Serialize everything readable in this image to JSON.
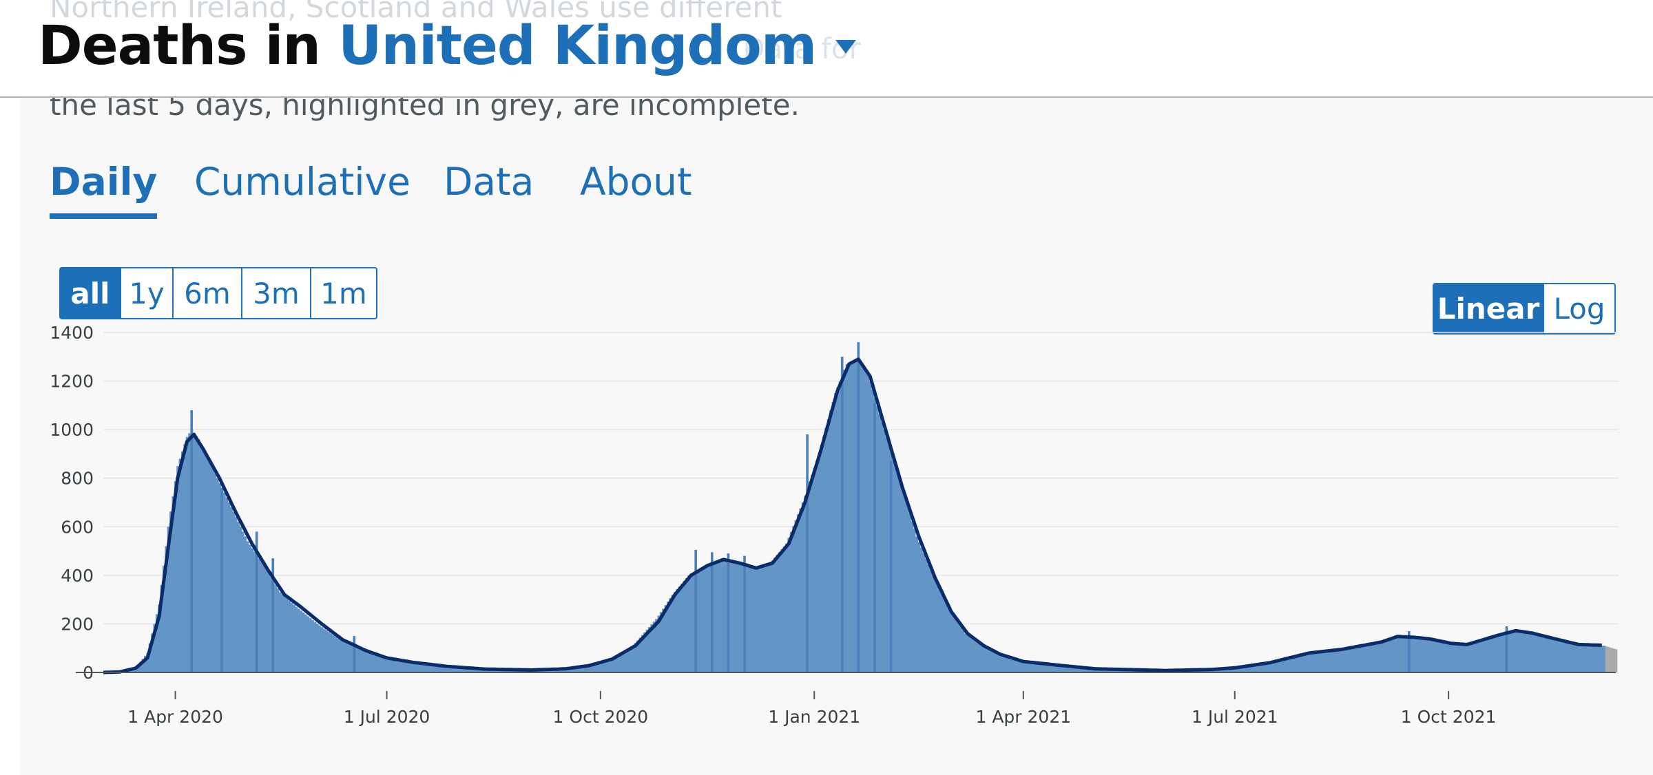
{
  "header": {
    "title_prefix": "Deaths in",
    "area_name": "United Kingdom",
    "under_text": "Northern Ireland, Scotland and Wales use different",
    "ghost_text": "l. Data for"
  },
  "panel": {
    "description": "the last 5 days, highlighted in grey, are incomplete."
  },
  "tabs": [
    {
      "label": "Daily",
      "active": true
    },
    {
      "label": "Cumulative",
      "active": false
    },
    {
      "label": "Data",
      "active": false
    },
    {
      "label": "About",
      "active": false
    }
  ],
  "timespan_buttons": [
    {
      "label": "all",
      "active": true
    },
    {
      "label": "1y",
      "active": false
    },
    {
      "label": "6m",
      "active": false
    },
    {
      "label": "3m",
      "active": false
    },
    {
      "label": "1m",
      "active": false
    }
  ],
  "scale_buttons": [
    {
      "label": "Linear",
      "active": true
    },
    {
      "label": "Log",
      "active": false
    }
  ],
  "colors": {
    "accent": "#1d70b8",
    "bar": "#6395c6",
    "bar_spike": "#4a7fb8",
    "avg_line": "#0b2c6b",
    "incomplete": "#aaaaaa",
    "grid": "#e6e6e6"
  },
  "icons": {
    "area_dropdown": "caret-down-icon"
  },
  "chart_data": {
    "type": "bar",
    "x_type": "date",
    "x_range": [
      "2020-03-01",
      "2021-12-12"
    ],
    "ylim": [
      0,
      1400
    ],
    "y_ticks": [
      0,
      200,
      400,
      600,
      800,
      1000,
      1200,
      1400
    ],
    "x_ticks": [
      {
        "date": "2020-04-01",
        "label": "1 Apr 2020"
      },
      {
        "date": "2020-07-01",
        "label": "1 Jul 2020"
      },
      {
        "date": "2020-10-01",
        "label": "1 Oct 2020"
      },
      {
        "date": "2021-01-01",
        "label": "1 Jan 2021"
      },
      {
        "date": "2021-04-01",
        "label": "1 Apr 2021"
      },
      {
        "date": "2021-07-01",
        "label": "1 Jul 2021"
      },
      {
        "date": "2021-10-01",
        "label": "1 Oct 2021"
      }
    ],
    "grid": true,
    "incomplete_days": 5,
    "series_daily_deaths": [
      [
        "2020-03-01",
        0
      ],
      [
        "2020-03-08",
        2
      ],
      [
        "2020-03-15",
        20
      ],
      [
        "2020-03-20",
        80
      ],
      [
        "2020-03-25",
        280
      ],
      [
        "2020-03-29",
        600
      ],
      [
        "2020-04-02",
        850
      ],
      [
        "2020-04-06",
        970
      ],
      [
        "2020-04-08",
        1000
      ],
      [
        "2020-04-11",
        960
      ],
      [
        "2020-04-18",
        820
      ],
      [
        "2020-04-25",
        680
      ],
      [
        "2020-05-02",
        540
      ],
      [
        "2020-05-09",
        440
      ],
      [
        "2020-05-16",
        330
      ],
      [
        "2020-05-23",
        270
      ],
      [
        "2020-06-01",
        200
      ],
      [
        "2020-06-10",
        140
      ],
      [
        "2020-06-20",
        95
      ],
      [
        "2020-06-30",
        60
      ],
      [
        "2020-07-10",
        45
      ],
      [
        "2020-07-25",
        25
      ],
      [
        "2020-08-10",
        14
      ],
      [
        "2020-09-01",
        10
      ],
      [
        "2020-09-15",
        15
      ],
      [
        "2020-09-25",
        28
      ],
      [
        "2020-10-05",
        55
      ],
      [
        "2020-10-15",
        110
      ],
      [
        "2020-10-25",
        220
      ],
      [
        "2020-11-01",
        320
      ],
      [
        "2020-11-08",
        400
      ],
      [
        "2020-11-15",
        440
      ],
      [
        "2020-11-22",
        470
      ],
      [
        "2020-11-29",
        450
      ],
      [
        "2020-12-06",
        430
      ],
      [
        "2020-12-13",
        450
      ],
      [
        "2020-12-20",
        530
      ],
      [
        "2020-12-27",
        700
      ],
      [
        "2021-01-03",
        900
      ],
      [
        "2021-01-10",
        1150
      ],
      [
        "2021-01-15",
        1270
      ],
      [
        "2021-01-19",
        1290
      ],
      [
        "2021-01-24",
        1230
      ],
      [
        "2021-01-31",
        1000
      ],
      [
        "2021-02-07",
        780
      ],
      [
        "2021-02-14",
        560
      ],
      [
        "2021-02-21",
        400
      ],
      [
        "2021-02-28",
        260
      ],
      [
        "2021-03-07",
        160
      ],
      [
        "2021-03-14",
        110
      ],
      [
        "2021-03-21",
        75
      ],
      [
        "2021-03-31",
        45
      ],
      [
        "2021-04-15",
        30
      ],
      [
        "2021-05-01",
        15
      ],
      [
        "2021-06-01",
        8
      ],
      [
        "2021-06-20",
        12
      ],
      [
        "2021-07-01",
        20
      ],
      [
        "2021-07-15",
        40
      ],
      [
        "2021-08-01",
        80
      ],
      [
        "2021-08-15",
        95
      ],
      [
        "2021-09-01",
        125
      ],
      [
        "2021-09-08",
        150
      ],
      [
        "2021-09-15",
        145
      ],
      [
        "2021-09-22",
        140
      ],
      [
        "2021-10-01",
        120
      ],
      [
        "2021-10-08",
        115
      ],
      [
        "2021-10-15",
        135
      ],
      [
        "2021-10-22",
        155
      ],
      [
        "2021-10-29",
        175
      ],
      [
        "2021-11-05",
        165
      ],
      [
        "2021-11-15",
        140
      ],
      [
        "2021-11-25",
        115
      ],
      [
        "2021-12-07",
        110
      ],
      [
        "2021-12-12",
        95
      ]
    ],
    "series_daily_spikes": [
      [
        "2020-04-08",
        1080
      ],
      [
        "2020-04-21",
        760
      ],
      [
        "2020-05-06",
        580
      ],
      [
        "2020-05-13",
        470
      ],
      [
        "2020-06-17",
        150
      ],
      [
        "2020-11-11",
        505
      ],
      [
        "2020-11-18",
        495
      ],
      [
        "2020-11-25",
        490
      ],
      [
        "2020-12-02",
        480
      ],
      [
        "2020-12-29",
        980
      ],
      [
        "2021-01-13",
        1300
      ],
      [
        "2021-01-20",
        1360
      ],
      [
        "2021-01-27",
        1110
      ],
      [
        "2021-02-03",
        870
      ],
      [
        "2021-09-14",
        170
      ],
      [
        "2021-10-26",
        190
      ]
    ],
    "series_7day_average": [
      [
        "2020-03-01",
        0
      ],
      [
        "2020-03-08",
        2
      ],
      [
        "2020-03-15",
        18
      ],
      [
        "2020-03-20",
        60
      ],
      [
        "2020-03-25",
        230
      ],
      [
        "2020-03-29",
        520
      ],
      [
        "2020-04-02",
        800
      ],
      [
        "2020-04-06",
        950
      ],
      [
        "2020-04-09",
        980
      ],
      [
        "2020-04-13",
        920
      ],
      [
        "2020-04-20",
        800
      ],
      [
        "2020-04-27",
        660
      ],
      [
        "2020-05-04",
        530
      ],
      [
        "2020-05-11",
        420
      ],
      [
        "2020-05-18",
        320
      ],
      [
        "2020-05-25",
        270
      ],
      [
        "2020-06-03",
        200
      ],
      [
        "2020-06-12",
        135
      ],
      [
        "2020-06-22",
        90
      ],
      [
        "2020-07-01",
        60
      ],
      [
        "2020-07-12",
        42
      ],
      [
        "2020-07-27",
        25
      ],
      [
        "2020-08-12",
        14
      ],
      [
        "2020-09-01",
        10
      ],
      [
        "2020-09-16",
        15
      ],
      [
        "2020-09-26",
        28
      ],
      [
        "2020-10-06",
        55
      ],
      [
        "2020-10-16",
        110
      ],
      [
        "2020-10-26",
        210
      ],
      [
        "2020-11-02",
        320
      ],
      [
        "2020-11-09",
        400
      ],
      [
        "2020-11-16",
        440
      ],
      [
        "2020-11-23",
        465
      ],
      [
        "2020-11-30",
        450
      ],
      [
        "2020-12-07",
        430
      ],
      [
        "2020-12-14",
        450
      ],
      [
        "2020-12-21",
        530
      ],
      [
        "2020-12-28",
        700
      ],
      [
        "2021-01-04",
        920
      ],
      [
        "2021-01-11",
        1160
      ],
      [
        "2021-01-16",
        1270
      ],
      [
        "2021-01-20",
        1290
      ],
      [
        "2021-01-25",
        1220
      ],
      [
        "2021-02-01",
        990
      ],
      [
        "2021-02-08",
        760
      ],
      [
        "2021-02-15",
        560
      ],
      [
        "2021-02-22",
        390
      ],
      [
        "2021-03-01",
        250
      ],
      [
        "2021-03-08",
        160
      ],
      [
        "2021-03-15",
        110
      ],
      [
        "2021-03-22",
        75
      ],
      [
        "2021-04-01",
        45
      ],
      [
        "2021-04-16",
        30
      ],
      [
        "2021-05-02",
        15
      ],
      [
        "2021-06-01",
        8
      ],
      [
        "2021-06-21",
        12
      ],
      [
        "2021-07-02",
        20
      ],
      [
        "2021-07-16",
        40
      ],
      [
        "2021-08-02",
        80
      ],
      [
        "2021-08-16",
        95
      ],
      [
        "2021-09-02",
        125
      ],
      [
        "2021-09-09",
        148
      ],
      [
        "2021-09-16",
        145
      ],
      [
        "2021-09-23",
        138
      ],
      [
        "2021-10-02",
        120
      ],
      [
        "2021-10-09",
        115
      ],
      [
        "2021-10-16",
        135
      ],
      [
        "2021-10-23",
        155
      ],
      [
        "2021-10-30",
        172
      ],
      [
        "2021-11-06",
        162
      ],
      [
        "2021-11-16",
        138
      ],
      [
        "2021-11-26",
        115
      ],
      [
        "2021-12-06",
        112
      ]
    ]
  }
}
